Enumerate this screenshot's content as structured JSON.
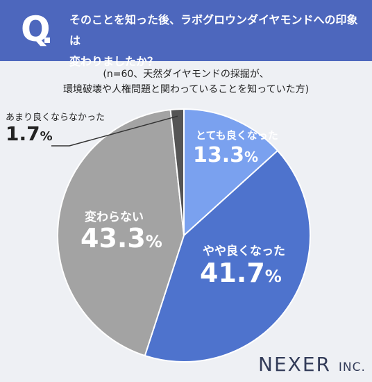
{
  "header": {
    "q_mark": "Q",
    "question_line1": "そのことを知った後、ラボグロウンダイヤモンドへの印象は",
    "question_line2": "変わりましたか？"
  },
  "note": {
    "line1": "(n=60、天然ダイヤモンドの採掘が、",
    "line2": "環境破壊や人権問題と関わっていることを知っていた方)"
  },
  "chart_data": {
    "type": "pie",
    "unit": "%",
    "slices": [
      {
        "label": "とても良くなった",
        "value": 13.3,
        "display": "13.3",
        "color": "#7aa1ef"
      },
      {
        "label": "やや良くなった",
        "value": 41.7,
        "display": "41.7",
        "color": "#4e73cd"
      },
      {
        "label": "変わらない",
        "value": 43.3,
        "display": "43.3",
        "color": "#a3a3a3"
      },
      {
        "label": "あまり良くならなかった",
        "value": 1.7,
        "display": "1.7",
        "color": "#555555"
      }
    ]
  },
  "logo": {
    "name": "NEXER",
    "suffix": "INC."
  }
}
